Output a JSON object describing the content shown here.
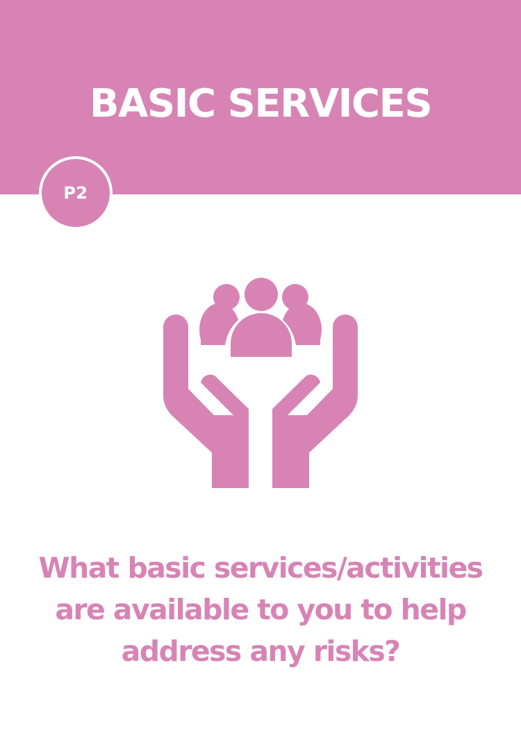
{
  "card": {
    "title": "BASIC SERVICES",
    "badge": "P2",
    "question": "What basic services/activities are available to you to help address any risks?",
    "icon": "hands-holding-people-icon"
  },
  "colors": {
    "accent": "#d784b5",
    "background": "#ffffff",
    "header_text": "#ffffff"
  }
}
